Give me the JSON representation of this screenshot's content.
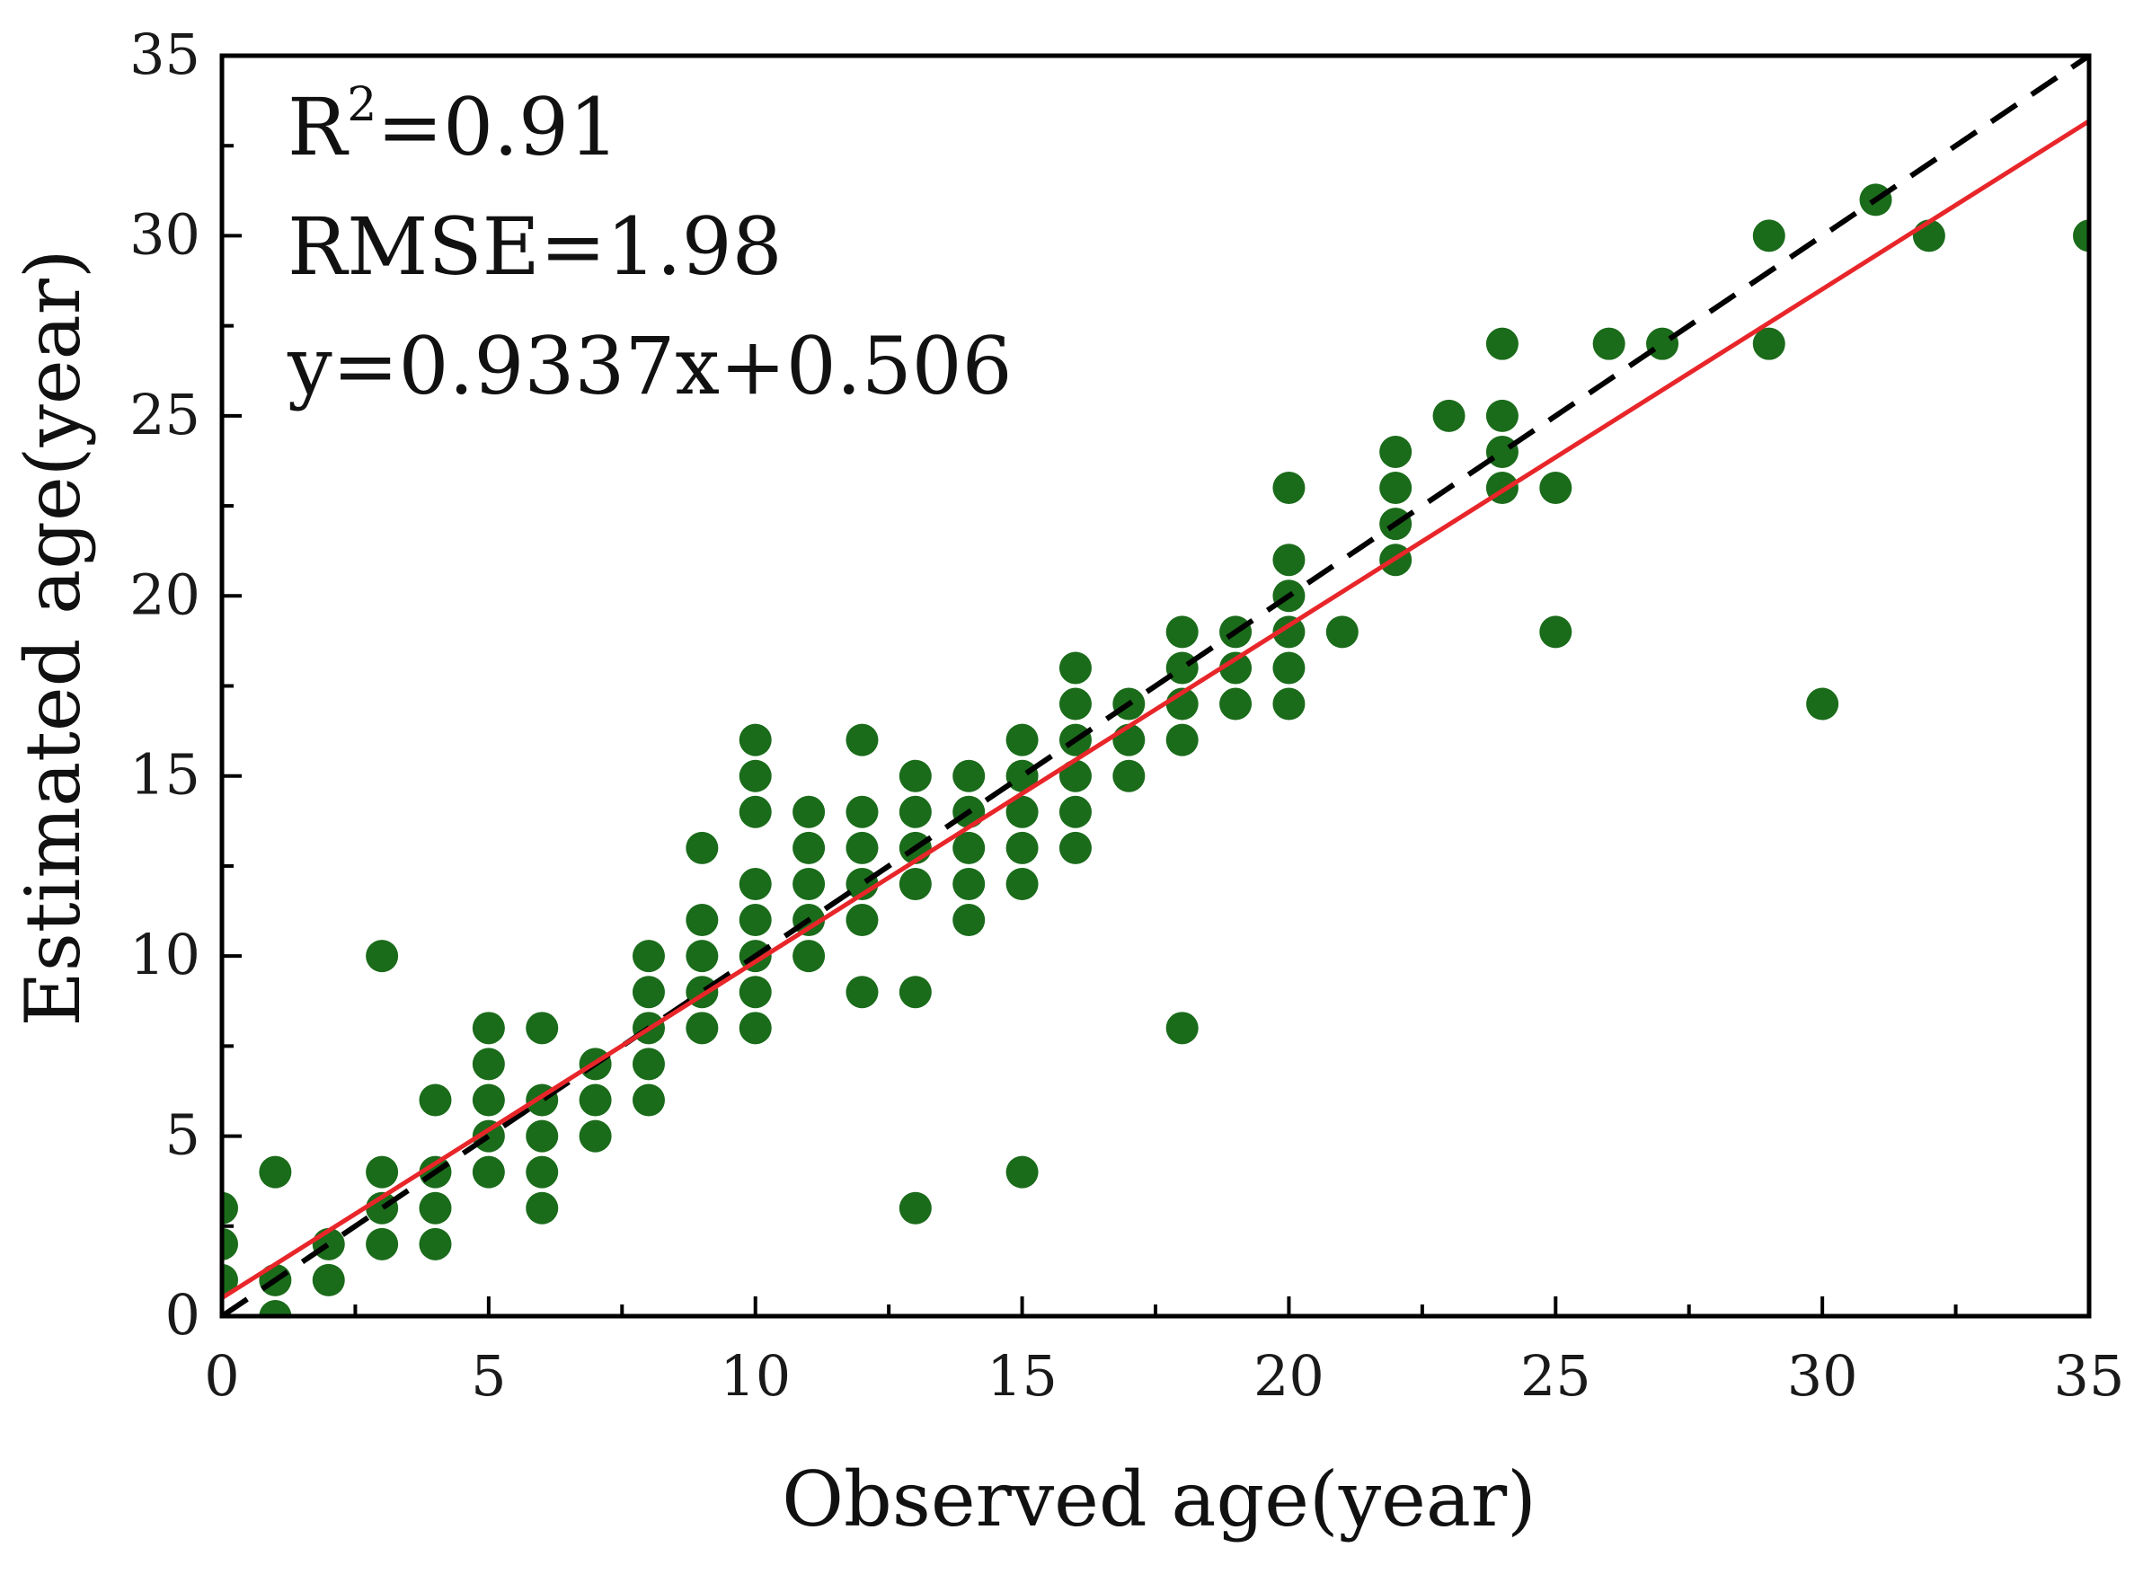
{
  "chart_data": {
    "type": "scatter",
    "title": "",
    "xlabel": "Observed age(year)",
    "ylabel": "Estimated age(year)",
    "xlim": [
      0,
      35
    ],
    "ylim": [
      0,
      35
    ],
    "xticks": [
      0,
      5,
      10,
      15,
      20,
      25,
      30,
      35
    ],
    "yticks": [
      0,
      5,
      10,
      15,
      20,
      25,
      30,
      35
    ],
    "xtick_labels": [
      "0",
      "5",
      "10",
      "15",
      "20",
      "25",
      "30",
      "35"
    ],
    "ytick_labels": [
      "0",
      "5",
      "10",
      "15",
      "20",
      "25",
      "30",
      "35"
    ],
    "grid": false,
    "annotations": {
      "r2_prefix": "R",
      "r2_sup": "2",
      "r2_value": "=0.91",
      "rmse": "RMSE=1.98",
      "equation": "y=0.9337x+0.506"
    },
    "colors": {
      "points": "#1a6b1a",
      "fit_line": "#e8262a",
      "identity_line": "#000000",
      "axis": "#000000"
    },
    "fit_line": {
      "slope": 0.9337,
      "intercept": 0.506,
      "style": "solid"
    },
    "identity_line": {
      "slope": 1,
      "intercept": 0,
      "style": "dashed"
    },
    "series": [
      {
        "name": "samples",
        "points": [
          [
            0,
            1
          ],
          [
            0,
            2
          ],
          [
            0,
            3
          ],
          [
            1,
            0
          ],
          [
            1,
            1
          ],
          [
            1,
            4
          ],
          [
            2,
            1
          ],
          [
            2,
            2
          ],
          [
            3,
            2
          ],
          [
            3,
            3
          ],
          [
            3,
            4
          ],
          [
            3,
            10
          ],
          [
            4,
            2
          ],
          [
            4,
            3
          ],
          [
            4,
            4
          ],
          [
            4,
            6
          ],
          [
            5,
            4
          ],
          [
            5,
            5
          ],
          [
            5,
            6
          ],
          [
            5,
            7
          ],
          [
            5,
            8
          ],
          [
            6,
            3
          ],
          [
            6,
            4
          ],
          [
            6,
            5
          ],
          [
            6,
            6
          ],
          [
            6,
            8
          ],
          [
            7,
            5
          ],
          [
            7,
            6
          ],
          [
            7,
            7
          ],
          [
            8,
            6
          ],
          [
            8,
            7
          ],
          [
            8,
            8
          ],
          [
            8,
            9
          ],
          [
            8,
            10
          ],
          [
            9,
            8
          ],
          [
            9,
            9
          ],
          [
            9,
            10
          ],
          [
            9,
            11
          ],
          [
            9,
            13
          ],
          [
            10,
            8
          ],
          [
            10,
            9
          ],
          [
            10,
            10
          ],
          [
            10,
            11
          ],
          [
            10,
            12
          ],
          [
            10,
            14
          ],
          [
            10,
            15
          ],
          [
            10,
            16
          ],
          [
            11,
            10
          ],
          [
            11,
            11
          ],
          [
            11,
            12
          ],
          [
            11,
            13
          ],
          [
            11,
            14
          ],
          [
            12,
            9
          ],
          [
            12,
            11
          ],
          [
            12,
            12
          ],
          [
            12,
            13
          ],
          [
            12,
            14
          ],
          [
            12,
            16
          ],
          [
            13,
            3
          ],
          [
            13,
            9
          ],
          [
            13,
            12
          ],
          [
            13,
            13
          ],
          [
            13,
            14
          ],
          [
            13,
            15
          ],
          [
            14,
            11
          ],
          [
            14,
            12
          ],
          [
            14,
            13
          ],
          [
            14,
            14
          ],
          [
            14,
            15
          ],
          [
            15,
            4
          ],
          [
            15,
            12
          ],
          [
            15,
            13
          ],
          [
            15,
            14
          ],
          [
            15,
            15
          ],
          [
            15,
            16
          ],
          [
            16,
            13
          ],
          [
            16,
            14
          ],
          [
            16,
            15
          ],
          [
            16,
            16
          ],
          [
            16,
            17
          ],
          [
            16,
            18
          ],
          [
            17,
            15
          ],
          [
            17,
            16
          ],
          [
            17,
            17
          ],
          [
            18,
            8
          ],
          [
            18,
            16
          ],
          [
            18,
            17
          ],
          [
            18,
            18
          ],
          [
            18,
            19
          ],
          [
            19,
            17
          ],
          [
            19,
            18
          ],
          [
            19,
            19
          ],
          [
            20,
            17
          ],
          [
            20,
            18
          ],
          [
            20,
            19
          ],
          [
            20,
            20
          ],
          [
            20,
            21
          ],
          [
            20,
            23
          ],
          [
            21,
            19
          ],
          [
            22,
            21
          ],
          [
            22,
            22
          ],
          [
            22,
            23
          ],
          [
            22,
            24
          ],
          [
            23,
            25
          ],
          [
            24,
            23
          ],
          [
            24,
            24
          ],
          [
            24,
            25
          ],
          [
            24,
            27
          ],
          [
            25,
            19
          ],
          [
            25,
            23
          ],
          [
            26,
            27
          ],
          [
            27,
            27
          ],
          [
            29,
            27
          ],
          [
            29,
            30
          ],
          [
            30,
            17
          ],
          [
            31,
            31
          ],
          [
            32,
            30
          ],
          [
            35,
            30
          ]
        ]
      }
    ]
  }
}
